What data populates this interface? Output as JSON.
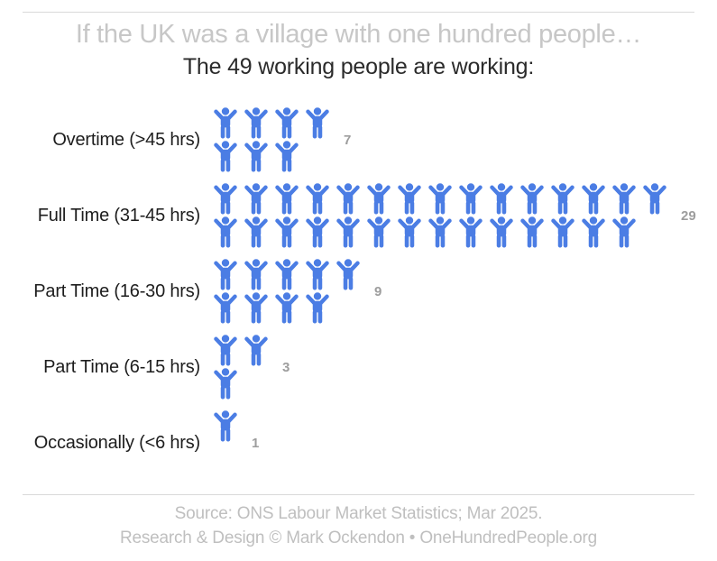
{
  "title": "If the UK was a village with one hundred people…",
  "subtitle": "The 49 working people are working:",
  "chart_data": {
    "type": "bar",
    "variant": "pictogram",
    "unit": "people (1 icon = 1 person)",
    "categories": [
      "Overtime (>45 hrs)",
      "Full Time (31-45 hrs)",
      "Part Time (16-30 hrs)",
      "Part Time (6-15 hrs)",
      "Occasionally (<6 hrs)"
    ],
    "values": [
      7,
      29,
      9,
      3,
      1
    ],
    "total": 49,
    "title": "If the UK was a village with one hundred people…",
    "subtitle": "The 49 working people are working:",
    "icon": "person-arms-up",
    "icons_per_column": 2,
    "fill_order": "column-major",
    "value_labels_shown": true
  },
  "footer": {
    "source": "Source: ONS Labour Market Statistics; Mar 2025.",
    "credit": "Research & Design © Mark Ockendon • OneHundredPeople.org"
  },
  "colors": {
    "icon_blue": "#4b7de4",
    "count_gray": "#9d9d9d",
    "title_gray": "#c7c7c7",
    "footer_gray": "#bfbfbf",
    "divider_gray": "#d9d9d9",
    "label_dark": "#1d1d1d",
    "background": "#ffffff"
  }
}
